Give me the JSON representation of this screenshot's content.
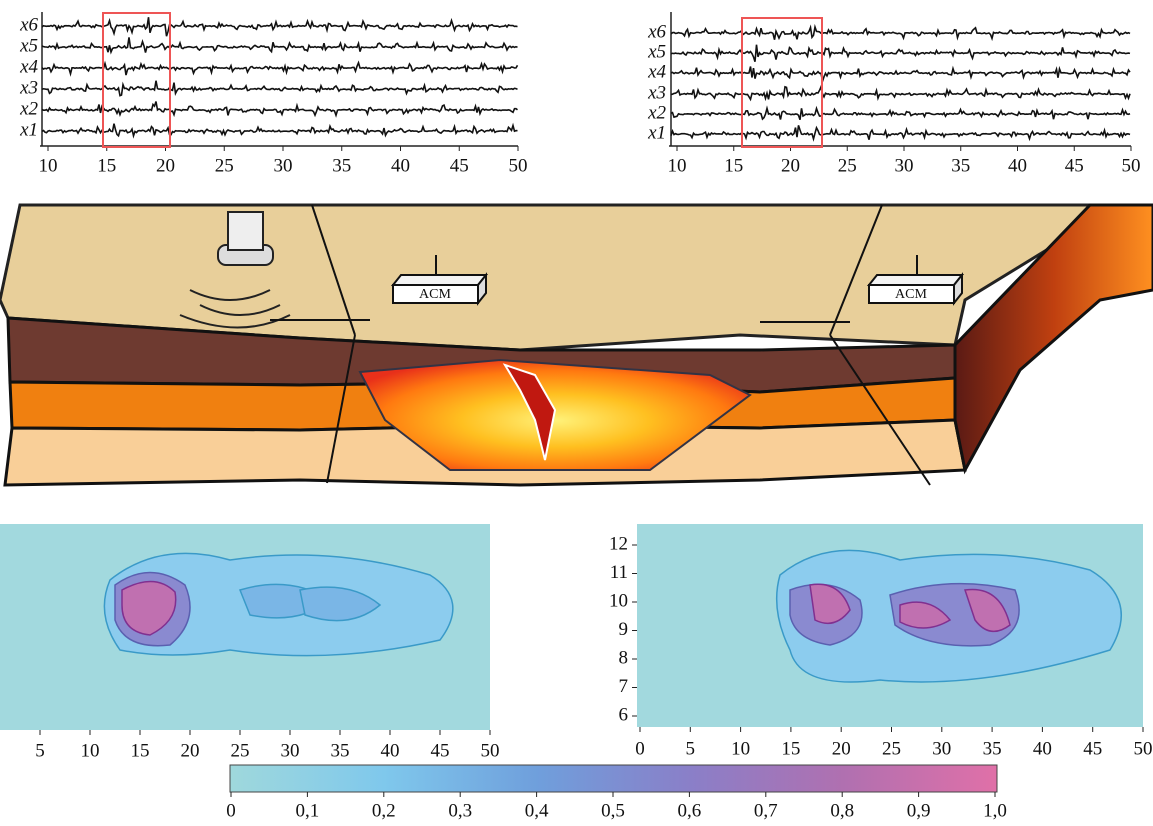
{
  "seismograms": [
    {
      "trace_labels": [
        "x6",
        "x5",
        "x4",
        "x3",
        "x2",
        "x1"
      ],
      "xticks": [
        10,
        15,
        20,
        25,
        30,
        35,
        40,
        45,
        50
      ]
    },
    {
      "trace_labels": [
        "x6",
        "x5",
        "x4",
        "x3",
        "x2",
        "x1"
      ],
      "xticks": [
        10,
        15,
        20,
        25,
        30,
        35,
        40,
        45,
        50
      ]
    }
  ],
  "diagram": {
    "station_labels": [
      "ACM",
      "ACM"
    ]
  },
  "maps": [
    {
      "xticks": [
        5,
        10,
        15,
        20,
        25,
        30,
        35,
        40,
        45,
        50
      ]
    },
    {
      "xticks": [
        0,
        5,
        10,
        15,
        20,
        25,
        30,
        35,
        40,
        45,
        50
      ],
      "yticks": [
        6,
        7,
        8,
        9,
        10,
        11,
        12
      ]
    }
  ],
  "colorbar": {
    "ticks": [
      {
        "value": 0,
        "label": "0"
      },
      {
        "value": 0.1,
        "label": "0,1"
      },
      {
        "value": 0.2,
        "label": "0,2"
      },
      {
        "value": 0.3,
        "label": "0,3"
      },
      {
        "value": 0.4,
        "label": "0,4"
      },
      {
        "value": 0.5,
        "label": "0,5"
      },
      {
        "value": 0.6,
        "label": "0,6"
      },
      {
        "value": 0.7,
        "label": "0,7"
      },
      {
        "value": 0.8,
        "label": "0,8"
      },
      {
        "value": 0.9,
        "label": "0,9"
      },
      {
        "value": 1.0,
        "label": "1,0"
      }
    ]
  }
}
